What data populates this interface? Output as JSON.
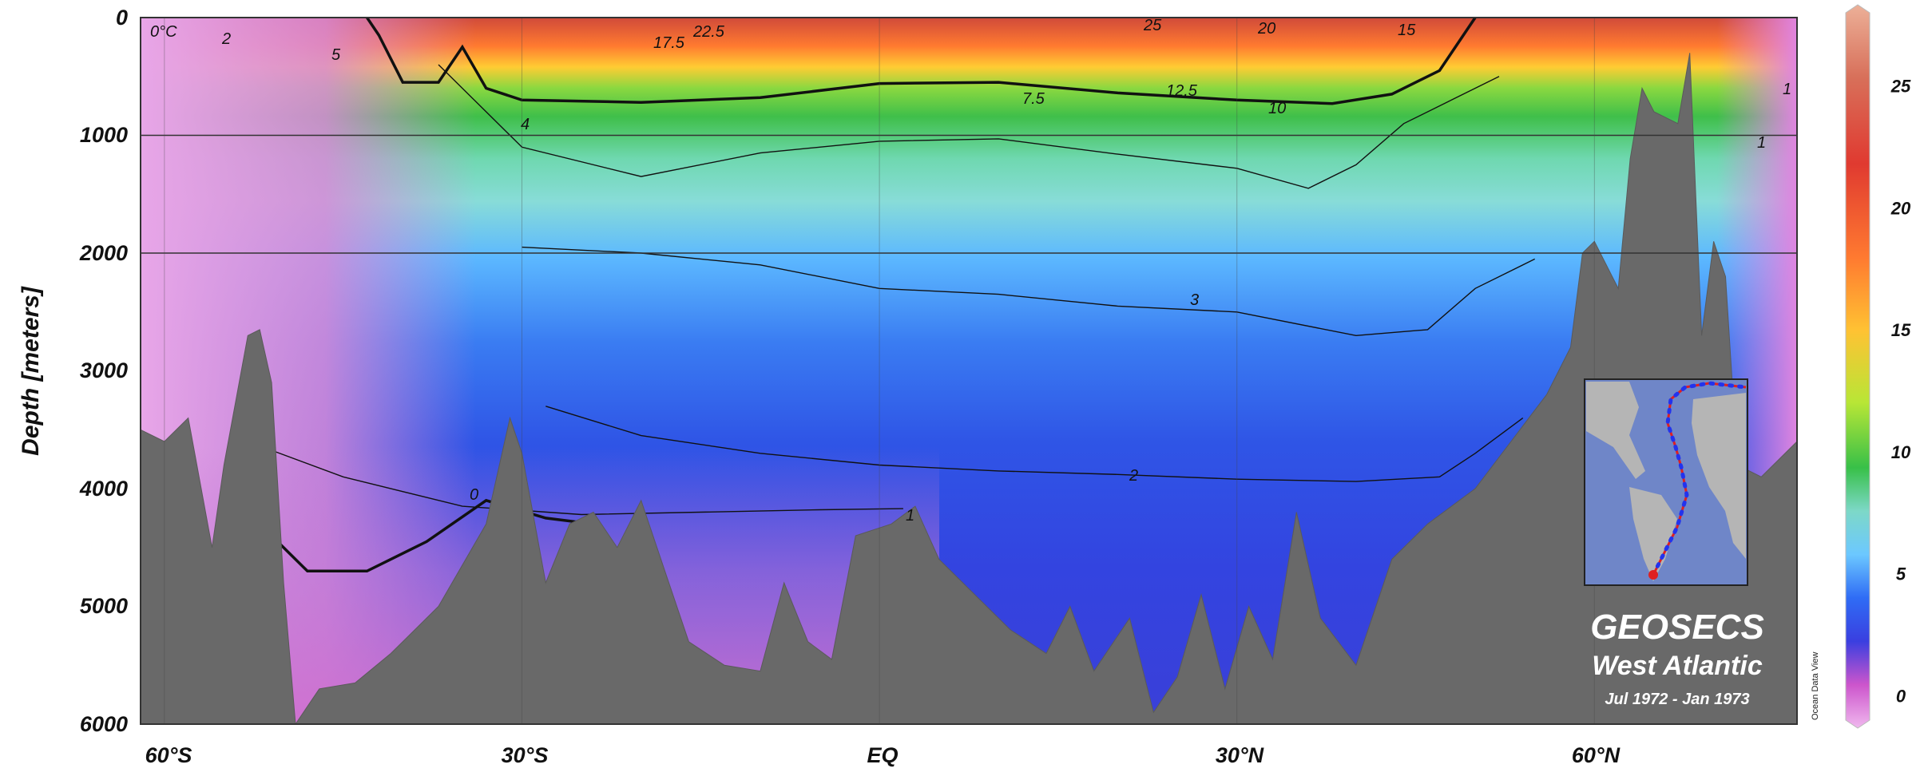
{
  "chart_data": {
    "type": "heatmap",
    "title": "",
    "xlabel": "",
    "ylabel": "Depth [meters]",
    "x_tick_labels": [
      "60°S",
      "30°S",
      "EQ",
      "30°N",
      "60°N"
    ],
    "x_tick_values": [
      -60,
      -30,
      0,
      30,
      60
    ],
    "xlim": [
      -62,
      77
    ],
    "y_tick_labels": [
      "0",
      "1000",
      "2000",
      "3000",
      "4000",
      "5000",
      "6000"
    ],
    "y_tick_values": [
      0,
      1000,
      2000,
      3000,
      4000,
      5000,
      6000
    ],
    "ylim": [
      6000,
      0
    ],
    "colorbar": {
      "ticks": [
        0,
        5,
        10,
        15,
        20,
        25
      ],
      "range": [
        -1,
        28
      ],
      "colors": [
        "#e5a0e0",
        "#cc55cc",
        "#4444ee",
        "#2266ff",
        "#55bbff",
        "#88ddcc",
        "#44cc44",
        "#ccee33",
        "#ffbb33",
        "#ff6633",
        "#dd2222",
        "#e69a7a"
      ]
    },
    "contour_labels": [
      "0°C",
      "2",
      "5",
      "22.5",
      "25",
      "20",
      "15",
      "17.5",
      "12.5",
      "7.5",
      "10",
      "4",
      "3",
      "2",
      "0",
      "1",
      "1",
      "1"
    ],
    "isotherms": [
      {
        "level": 10,
        "points": [
          [
            -43,
            0
          ],
          [
            -42,
            150
          ],
          [
            -40,
            550
          ],
          [
            -37,
            550
          ],
          [
            -35,
            250
          ],
          [
            -33,
            600
          ],
          [
            -30,
            700
          ],
          [
            -20,
            720
          ],
          [
            -10,
            680
          ],
          [
            0,
            560
          ],
          [
            10,
            550
          ],
          [
            20,
            640
          ],
          [
            30,
            700
          ],
          [
            38,
            730
          ],
          [
            43,
            650
          ],
          [
            47,
            450
          ],
          [
            49,
            150
          ],
          [
            50,
            0
          ]
        ]
      },
      {
        "level": 4,
        "points": [
          [
            -37,
            400
          ],
          [
            -30,
            1100
          ],
          [
            -20,
            1350
          ],
          [
            -10,
            1150
          ],
          [
            0,
            1050
          ],
          [
            10,
            1030
          ],
          [
            20,
            1160
          ],
          [
            30,
            1280
          ],
          [
            36,
            1450
          ],
          [
            40,
            1250
          ],
          [
            44,
            900
          ],
          [
            48,
            700
          ],
          [
            52,
            500
          ]
        ]
      },
      {
        "level": 3,
        "points": [
          [
            -30,
            1950
          ],
          [
            -20,
            2000
          ],
          [
            -10,
            2100
          ],
          [
            0,
            2300
          ],
          [
            10,
            2350
          ],
          [
            20,
            2450
          ],
          [
            30,
            2500
          ],
          [
            40,
            2700
          ],
          [
            46,
            2650
          ],
          [
            50,
            2300
          ],
          [
            55,
            2050
          ]
        ]
      },
      {
        "level": 2,
        "points": [
          [
            -28,
            3300
          ],
          [
            -20,
            3550
          ],
          [
            -10,
            3700
          ],
          [
            0,
            3800
          ],
          [
            10,
            3850
          ],
          [
            20,
            3880
          ],
          [
            30,
            3920
          ],
          [
            40,
            3940
          ],
          [
            47,
            3900
          ],
          [
            50,
            3700
          ],
          [
            54,
            3400
          ]
        ]
      },
      {
        "level": 1,
        "points": [
          [
            -53,
            3600
          ],
          [
            -45,
            3900
          ],
          [
            -35,
            4150
          ],
          [
            -25,
            4220
          ],
          [
            -15,
            4200
          ],
          [
            -5,
            4180
          ],
          [
            2,
            4170
          ]
        ]
      },
      {
        "level": 0,
        "points": [
          [
            -51,
            4400
          ],
          [
            -48,
            4700
          ],
          [
            -43,
            4700
          ],
          [
            -38,
            4450
          ],
          [
            -33,
            4100
          ],
          [
            -28,
            4250
          ],
          [
            -24,
            4300
          ]
        ]
      }
    ],
    "bathymetry": [
      [
        -62,
        3500
      ],
      [
        -60,
        3600
      ],
      [
        -58,
        3400
      ],
      [
        -56,
        4500
      ],
      [
        -55,
        3800
      ],
      [
        -53,
        2700
      ],
      [
        -52,
        2650
      ],
      [
        -51,
        3100
      ],
      [
        -50,
        4800
      ],
      [
        -49,
        6000
      ],
      [
        -47,
        5700
      ],
      [
        -44,
        5650
      ],
      [
        -41,
        5400
      ],
      [
        -37,
        5000
      ],
      [
        -33,
        4300
      ],
      [
        -31,
        3400
      ],
      [
        -30,
        3700
      ],
      [
        -28,
        4800
      ],
      [
        -26,
        4300
      ],
      [
        -24,
        4200
      ],
      [
        -22,
        4500
      ],
      [
        -20,
        4100
      ],
      [
        -18,
        4700
      ],
      [
        -16,
        5300
      ],
      [
        -13,
        5500
      ],
      [
        -10,
        5550
      ],
      [
        -8,
        4800
      ],
      [
        -6,
        5300
      ],
      [
        -4,
        5450
      ],
      [
        -2,
        4400
      ],
      [
        1,
        4300
      ],
      [
        3,
        4150
      ],
      [
        5,
        4600
      ],
      [
        8,
        4900
      ],
      [
        11,
        5200
      ],
      [
        14,
        5400
      ],
      [
        16,
        5000
      ],
      [
        18,
        5550
      ],
      [
        21,
        5100
      ],
      [
        23,
        5900
      ],
      [
        25,
        5600
      ],
      [
        27,
        4900
      ],
      [
        29,
        5700
      ],
      [
        31,
        5000
      ],
      [
        33,
        5450
      ],
      [
        35,
        4200
      ],
      [
        37,
        5100
      ],
      [
        40,
        5500
      ],
      [
        43,
        4600
      ],
      [
        46,
        4300
      ],
      [
        50,
        4000
      ],
      [
        53,
        3600
      ],
      [
        56,
        3200
      ],
      [
        58,
        2800
      ],
      [
        59,
        2000
      ],
      [
        60,
        1900
      ],
      [
        62,
        2300
      ],
      [
        63,
        1200
      ],
      [
        64,
        600
      ],
      [
        65,
        800
      ],
      [
        67,
        900
      ],
      [
        68,
        300
      ],
      [
        69,
        2700
      ],
      [
        70,
        1900
      ],
      [
        71,
        2200
      ],
      [
        72,
        3800
      ],
      [
        74,
        3900
      ],
      [
        77,
        3600
      ]
    ],
    "annotations": {
      "title": "GEOSECS",
      "subtitle": "West Atlantic",
      "dates": "Jul 1972 - Jan 1973",
      "credit": "Ocean Data View"
    },
    "grid": true
  }
}
